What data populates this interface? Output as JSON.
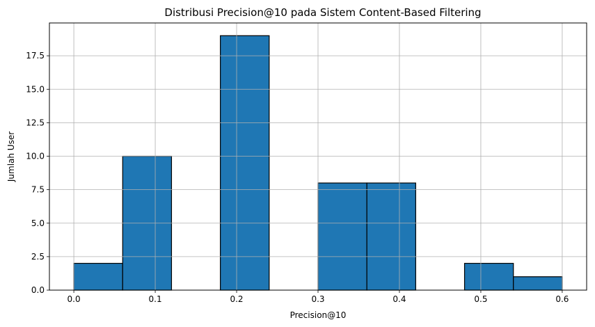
{
  "chart_data": {
    "type": "bar",
    "title": "Distribusi Precision@10 pada Sistem Content-Based Filtering",
    "xlabel": "Precision@10",
    "ylabel": "Jumlah User",
    "xlim": [
      -0.03,
      0.63
    ],
    "ylim": [
      0,
      19.95
    ],
    "grid": true,
    "bar_color": "#1f77b4",
    "edge_color": "#000000",
    "grid_color": "#b0b0b0",
    "x_ticks": [
      "0.0",
      "0.1",
      "0.2",
      "0.3",
      "0.4",
      "0.5",
      "0.6"
    ],
    "y_ticks": [
      "0.0",
      "2.5",
      "5.0",
      "7.5",
      "10.0",
      "12.5",
      "15.0",
      "17.5"
    ],
    "bins": [
      {
        "start": 0.0,
        "end": 0.06,
        "count": 2
      },
      {
        "start": 0.06,
        "end": 0.12,
        "count": 10
      },
      {
        "start": 0.12,
        "end": 0.18,
        "count": 0
      },
      {
        "start": 0.18,
        "end": 0.24,
        "count": 19
      },
      {
        "start": 0.24,
        "end": 0.3,
        "count": 0
      },
      {
        "start": 0.3,
        "end": 0.36,
        "count": 8
      },
      {
        "start": 0.36,
        "end": 0.42,
        "count": 8
      },
      {
        "start": 0.42,
        "end": 0.48,
        "count": 0
      },
      {
        "start": 0.48,
        "end": 0.54,
        "count": 2
      },
      {
        "start": 0.54,
        "end": 0.6,
        "count": 1
      }
    ]
  }
}
